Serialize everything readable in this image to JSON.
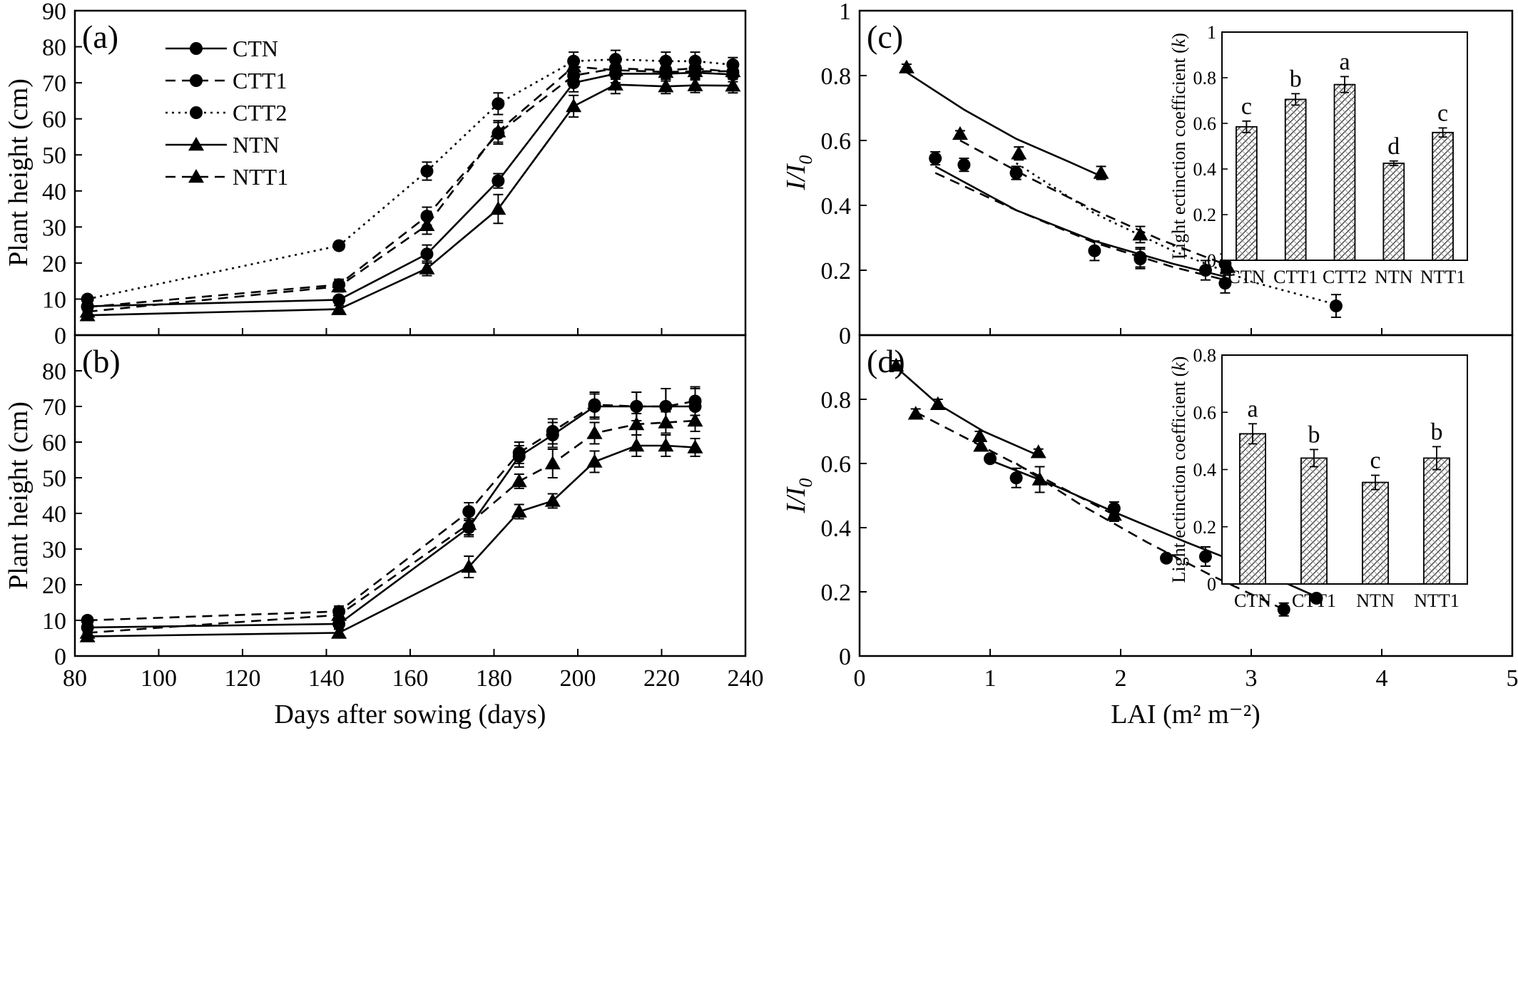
{
  "chart_data": [
    {
      "panel": "(a)",
      "type": "line",
      "xlabel": "",
      "ylabel": "Plant height (cm)",
      "xlim": [
        80,
        240
      ],
      "ylim": [
        0,
        90
      ],
      "yticks": [
        "0",
        "10",
        "20",
        "30",
        "40",
        "50",
        "60",
        "70",
        "80",
        "90"
      ],
      "legend": {
        "placement": "top-left",
        "entries": [
          "CTN",
          "CTT1",
          "CTT2",
          "NTN",
          "NTT1"
        ]
      },
      "series": [
        {
          "name": "CTN",
          "marker": "circle",
          "line": "solid",
          "x": [
            83,
            143,
            164,
            181,
            199,
            209,
            221,
            228,
            237
          ],
          "y": [
            8,
            9.8,
            22.5,
            42.8,
            70,
            72.5,
            72.5,
            72.8,
            72.3
          ],
          "err": [
            1,
            1,
            2.5,
            2,
            2.5,
            2.5,
            2,
            2,
            2
          ]
        },
        {
          "name": "CTT1",
          "marker": "circle",
          "line": "dashed",
          "x": [
            83,
            143,
            164,
            181,
            199,
            209,
            221,
            228,
            237
          ],
          "y": [
            7.8,
            14,
            33,
            56,
            72,
            74,
            73.5,
            74,
            73
          ],
          "err": [
            1,
            1.5,
            2.5,
            3,
            2.5,
            2.5,
            2,
            2,
            2
          ]
        },
        {
          "name": "CTT2",
          "marker": "circle",
          "line": "dotted",
          "x": [
            83,
            143,
            164,
            181,
            199,
            209,
            221,
            228,
            237
          ],
          "y": [
            10,
            24.8,
            45.5,
            64.2,
            76,
            76.5,
            76,
            76,
            75
          ],
          "err": [
            1,
            1,
            2.5,
            3,
            2.5,
            2.5,
            2.5,
            2.5,
            2
          ]
        },
        {
          "name": "NTN",
          "marker": "triangle",
          "line": "solid",
          "x": [
            83,
            143,
            164,
            181,
            199,
            209,
            221,
            228,
            237
          ],
          "y": [
            5.5,
            7.2,
            18.5,
            35,
            63.5,
            69.5,
            69,
            69.3,
            69.2
          ],
          "err": [
            1,
            1,
            2,
            4,
            3,
            2.5,
            2,
            2,
            2
          ]
        },
        {
          "name": "NTT1",
          "marker": "triangle",
          "line": "dashed",
          "x": [
            83,
            143,
            164,
            181,
            199,
            209,
            221,
            228,
            237
          ],
          "y": [
            6.5,
            13.5,
            30.5,
            56.5,
            74.5,
            73.5,
            73,
            73.2,
            73.2
          ],
          "err": [
            1,
            1.5,
            2.5,
            3,
            2.5,
            2.5,
            2,
            2,
            2
          ]
        }
      ]
    },
    {
      "panel": "(b)",
      "type": "line",
      "xlabel": "Days after sowing (days)",
      "ylabel": "Plant height (cm)",
      "xlim": [
        80,
        240
      ],
      "ylim": [
        0,
        90
      ],
      "xticks": [
        "80",
        "100",
        "120",
        "140",
        "160",
        "180",
        "200",
        "220",
        "240"
      ],
      "yticks": [
        "0",
        "10",
        "20",
        "30",
        "40",
        "50",
        "60",
        "70",
        "80"
      ],
      "series": [
        {
          "name": "CTN",
          "marker": "circle",
          "line": "solid",
          "x": [
            83,
            143,
            174,
            186,
            194,
            204,
            214,
            221,
            228
          ],
          "y": [
            8,
            9,
            36,
            56,
            62,
            70,
            70,
            70,
            70
          ],
          "err": [
            1,
            1.5,
            2.5,
            3,
            3.5,
            3.5,
            4,
            5,
            5
          ]
        },
        {
          "name": "CTT1",
          "marker": "circle",
          "line": "dashed",
          "x": [
            83,
            143,
            174,
            186,
            194,
            204,
            214,
            221,
            228
          ],
          "y": [
            10,
            12.5,
            40.5,
            57,
            63,
            70.5,
            70,
            70,
            71.5
          ],
          "err": [
            1,
            1.5,
            2.5,
            3,
            3.5,
            3.5,
            4,
            5,
            4
          ]
        },
        {
          "name": "NTN",
          "marker": "triangle",
          "line": "solid",
          "x": [
            83,
            143,
            174,
            186,
            194,
            204,
            214,
            221,
            228
          ],
          "y": [
            5.5,
            6.5,
            25,
            40.5,
            43.5,
            54.5,
            59,
            59,
            58.5
          ],
          "err": [
            1,
            1,
            3,
            2,
            2,
            3,
            3,
            3,
            2.5
          ]
        },
        {
          "name": "NTT1",
          "marker": "triangle",
          "line": "dashed",
          "x": [
            83,
            143,
            174,
            186,
            194,
            204,
            214,
            221,
            228
          ],
          "y": [
            6.5,
            11.5,
            37,
            49,
            54,
            62.5,
            65,
            65.5,
            66
          ],
          "err": [
            1,
            1.5,
            3,
            2,
            4,
            3,
            3,
            3,
            3
          ]
        }
      ]
    },
    {
      "panel": "(c)",
      "type": "scatter",
      "xlabel": "",
      "ylabel": "I/I0",
      "xlim": [
        0,
        5
      ],
      "ylim": [
        0,
        1
      ],
      "yticks": [
        "0",
        "0.2",
        "0.4",
        "0.6",
        "0.8",
        "1"
      ],
      "series": [
        {
          "name": "CTN",
          "marker": "circle",
          "line": "solid",
          "x": [
            0.58,
            1.8,
            2.15,
            2.65
          ],
          "y": [
            0.545,
            0.26,
            0.24,
            0.2
          ],
          "err": [
            0.02,
            0.03,
            0.03,
            0.03
          ],
          "fit": [
            [
              0.58,
              0.52
            ],
            [
              1.2,
              0.385
            ],
            [
              1.8,
              0.29
            ],
            [
              2.4,
              0.22
            ],
            [
              2.8,
              0.18
            ]
          ]
        },
        {
          "name": "CTT1",
          "marker": "circle",
          "line": "dashed",
          "x": [
            0.8,
            1.2,
            2.15,
            2.8
          ],
          "y": [
            0.525,
            0.5,
            0.235,
            0.16
          ],
          "err": [
            0.02,
            0.02,
            0.03,
            0.03
          ],
          "fit": [
            [
              0.58,
              0.5
            ],
            [
              1.2,
              0.385
            ],
            [
              1.8,
              0.285
            ],
            [
              2.4,
              0.21
            ],
            [
              2.8,
              0.17
            ]
          ]
        },
        {
          "name": "CTT2",
          "marker": "circle",
          "line": "dotted",
          "x": [
            1.2,
            2.8,
            3.65
          ],
          "y": [
            0.5,
            0.22,
            0.09
          ],
          "err": [
            0.02,
            0.03,
            0.035
          ],
          "fit": [
            [
              1.2,
              0.53
            ],
            [
              1.8,
              0.375
            ],
            [
              2.4,
              0.26
            ],
            [
              3.0,
              0.165
            ],
            [
              3.6,
              0.1
            ]
          ]
        },
        {
          "name": "NTN",
          "marker": "triangle",
          "line": "solid",
          "x": [
            0.36,
            1.85
          ],
          "y": [
            0.825,
            0.5
          ],
          "err": [
            0.01,
            0.02
          ],
          "fit": [
            [
              0.36,
              0.81
            ],
            [
              0.8,
              0.695
            ],
            [
              1.2,
              0.605
            ],
            [
              1.6,
              0.535
            ],
            [
              1.85,
              0.49
            ]
          ]
        },
        {
          "name": "NTT1",
          "marker": "triangle",
          "line": "dashed",
          "x": [
            0.77,
            1.22,
            2.15,
            2.82
          ],
          "y": [
            0.62,
            0.56,
            0.31,
            0.21
          ],
          "err": [
            0.01,
            0.02,
            0.025,
            0.025
          ],
          "fit": [
            [
              0.77,
              0.6
            ],
            [
              1.3,
              0.485
            ],
            [
              1.8,
              0.385
            ],
            [
              2.3,
              0.295
            ],
            [
              2.82,
              0.215
            ]
          ]
        }
      ],
      "inset": {
        "type": "bar",
        "ylabel": "Light ectinction coefficient (k)",
        "ylim": [
          0,
          1
        ],
        "yticks": [
          "0",
          "0.2",
          "0.4",
          "0.6",
          "0.8",
          "1"
        ],
        "categories": [
          "CTN",
          "CTT1",
          "CTT2",
          "NTN",
          "NTT1"
        ],
        "values": [
          0.585,
          0.705,
          0.77,
          0.425,
          0.56
        ],
        "err": [
          0.025,
          0.025,
          0.035,
          0.01,
          0.02
        ],
        "letters": [
          "c",
          "b",
          "a",
          "d",
          "c"
        ]
      }
    },
    {
      "panel": "(d)",
      "type": "scatter",
      "xlabel": "LAI (m² m⁻²)",
      "ylabel": "I/I0",
      "xlim": [
        0,
        5
      ],
      "ylim": [
        0,
        1
      ],
      "xticks": [
        "0",
        "1",
        "2",
        "3",
        "4",
        "5"
      ],
      "yticks": [
        "0",
        "0.2",
        "0.4",
        "0.6",
        "0.8"
      ],
      "series": [
        {
          "name": "CTN",
          "marker": "circle",
          "line": "solid",
          "x": [
            1.0,
            1.95,
            2.65,
            3.5
          ],
          "y": [
            0.615,
            0.46,
            0.31,
            0.18
          ],
          "err": [
            0.01,
            0.02,
            0.03,
            0.01
          ],
          "fit": [
            [
              1.0,
              0.61
            ],
            [
              1.5,
              0.53
            ],
            [
              2.0,
              0.44
            ],
            [
              2.5,
              0.355
            ],
            [
              3.0,
              0.275
            ],
            [
              3.5,
              0.185
            ]
          ]
        },
        {
          "name": "CTT1",
          "marker": "circle",
          "line": "dashed",
          "x": [
            1.2,
            2.35,
            3.25
          ],
          "y": [
            0.555,
            0.305,
            0.145
          ],
          "err": [
            0.03,
            0.01,
            0.02
          ],
          "fit": [
            [
              1.2,
              0.6
            ],
            [
              1.7,
              0.47
            ],
            [
              2.2,
              0.355
            ],
            [
              2.7,
              0.25
            ],
            [
              3.25,
              0.145
            ]
          ]
        },
        {
          "name": "NTN",
          "marker": "triangle",
          "line": "solid",
          "x": [
            0.28,
            0.6,
            0.92,
            1.37
          ],
          "y": [
            0.905,
            0.785,
            0.685,
            0.635
          ],
          "err": [
            0.015,
            0.015,
            0.015,
            0.01
          ],
          "fit": [
            [
              0.28,
              0.9
            ],
            [
              0.6,
              0.785
            ],
            [
              0.95,
              0.7
            ],
            [
              1.37,
              0.625
            ]
          ]
        },
        {
          "name": "NTT1",
          "marker": "triangle",
          "line": "dashed",
          "x": [
            0.43,
            0.93,
            1.38,
            1.95
          ],
          "y": [
            0.755,
            0.655,
            0.55,
            0.44
          ],
          "err": [
            0.015,
            0.015,
            0.04,
            0.02
          ],
          "fit": [
            [
              0.43,
              0.76
            ],
            [
              0.93,
              0.655
            ],
            [
              1.38,
              0.56
            ],
            [
              1.95,
              0.44
            ]
          ]
        }
      ],
      "inset": {
        "type": "bar",
        "ylabel": "Light ectinction coefficient (k)",
        "ylim": [
          0,
          0.8
        ],
        "yticks": [
          "0",
          "0.2",
          "0.4",
          "0.6",
          "0.8"
        ],
        "categories": [
          "CTN",
          "CTT1",
          "NTN",
          "NTT1"
        ],
        "values": [
          0.525,
          0.44,
          0.355,
          0.44
        ],
        "err": [
          0.035,
          0.03,
          0.025,
          0.04
        ],
        "letters": [
          "a",
          "b",
          "c",
          "b"
        ]
      }
    }
  ]
}
